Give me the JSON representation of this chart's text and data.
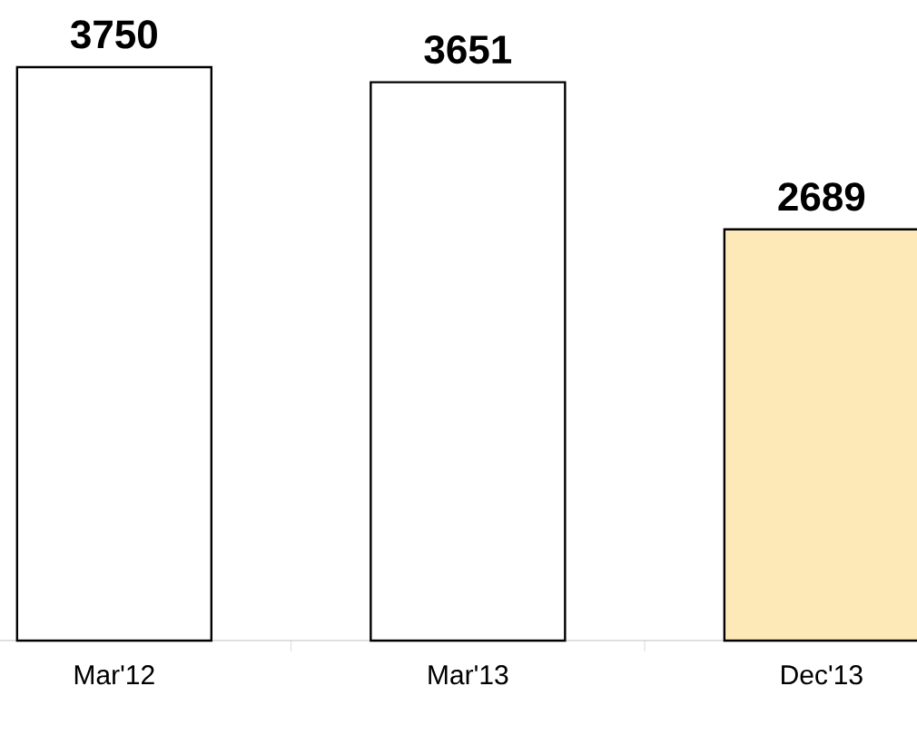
{
  "chart_data": {
    "type": "bar",
    "categories": [
      "Mar'12",
      "Mar'13",
      "Dec'13"
    ],
    "values": [
      3750,
      3651,
      2689
    ],
    "colors": [
      "#ffffff",
      "#ffffff",
      "#fde9b7"
    ],
    "data_labels": true
  }
}
